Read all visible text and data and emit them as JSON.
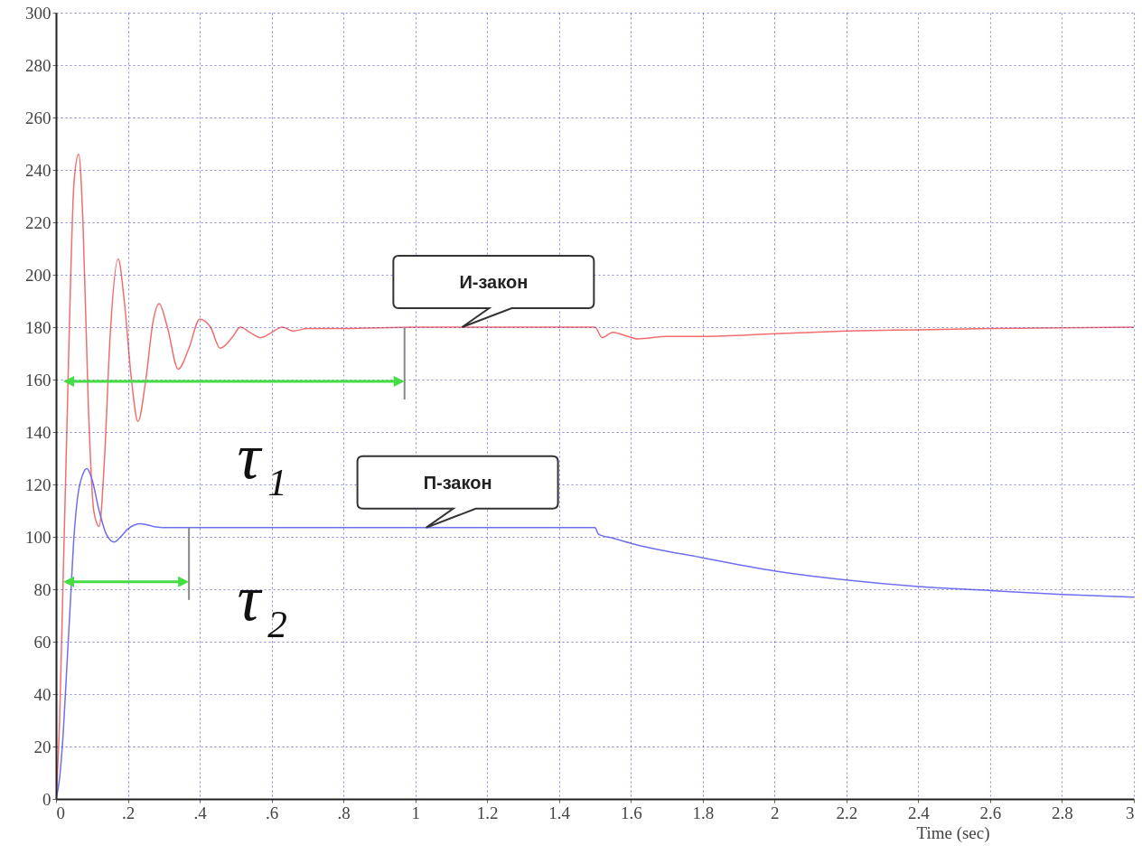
{
  "chart_data": {
    "type": "line",
    "xlabel": "Time (sec)",
    "xlim": [
      0,
      3
    ],
    "ylim": [
      0,
      300
    ],
    "xticks": [
      0,
      {
        "value": 0.2,
        "label": ".2"
      },
      {
        "value": 0.4,
        "label": ".4"
      },
      {
        "value": 0.6,
        "label": ".6"
      },
      {
        "value": 0.8,
        "label": ".8"
      },
      1,
      1.2,
      1.4,
      1.6,
      1.8,
      2,
      2.2,
      2.4,
      2.6,
      2.8,
      3
    ],
    "yticks": [
      0,
      20,
      40,
      60,
      80,
      100,
      120,
      140,
      160,
      180,
      200,
      220,
      240,
      260,
      280,
      300
    ],
    "grid": true,
    "marker": "none",
    "line_style": "solid",
    "series": [
      {
        "color": "#f06e6e",
        "x": [
          0,
          0.01,
          0.02,
          0.03,
          0.04,
          0.05,
          0.063,
          0.075,
          0.09,
          0.105,
          0.12,
          0.135,
          0.15,
          0.173,
          0.19,
          0.21,
          0.228,
          0.25,
          0.27,
          0.287,
          0.31,
          0.34,
          0.37,
          0.4,
          0.43,
          0.457,
          0.49,
          0.513,
          0.54,
          0.57,
          0.6,
          0.63,
          0.66,
          0.7,
          0.8,
          1.0,
          1.5,
          1.52,
          1.55,
          1.58,
          1.62,
          1.7,
          1.8,
          2.0,
          2.2,
          2.4,
          2.6,
          3
        ],
        "values": [
          0,
          30,
          85,
          140,
          195,
          235,
          246,
          220,
          150,
          110,
          104,
          130,
          175,
          206,
          190,
          160,
          144,
          160,
          182,
          189,
          180,
          164,
          172,
          183,
          180,
          172,
          176,
          180,
          178,
          176,
          178,
          180,
          178.5,
          179.5,
          179.5,
          180,
          180,
          176,
          178,
          177,
          175.5,
          176.5,
          176.5,
          177.5,
          178.5,
          179,
          179.5,
          180
        ]
      },
      {
        "color": "#6e6ef0",
        "x": [
          0,
          0.01,
          0.02,
          0.03,
          0.04,
          0.05,
          0.06,
          0.075,
          0.086,
          0.1,
          0.12,
          0.14,
          0.162,
          0.18,
          0.2,
          0.236,
          0.27,
          0.3,
          1.5,
          1.51,
          1.55,
          1.6,
          1.8,
          2.0,
          2.2,
          2.4,
          2.6,
          2.8,
          3
        ],
        "values": [
          0,
          8,
          25,
          50,
          75,
          100,
          115,
          124,
          126,
          122,
          110,
          101,
          98,
          100,
          103,
          105,
          104,
          103.5,
          103.5,
          101,
          99.5,
          97.5,
          92,
          87,
          83.5,
          81,
          79.5,
          78,
          77
        ]
      }
    ],
    "annotations": [
      {
        "text": "И-закон",
        "x": 1.13,
        "y": 180
      },
      {
        "text": "П-закон",
        "x": 1.03,
        "y": 103.5
      },
      {
        "text": "τ$_{1}$",
        "x": 0.97,
        "y": 180
      },
      {
        "text": "τ$_{2}$",
        "x": 0.37,
        "y": 103.5
      }
    ]
  }
}
